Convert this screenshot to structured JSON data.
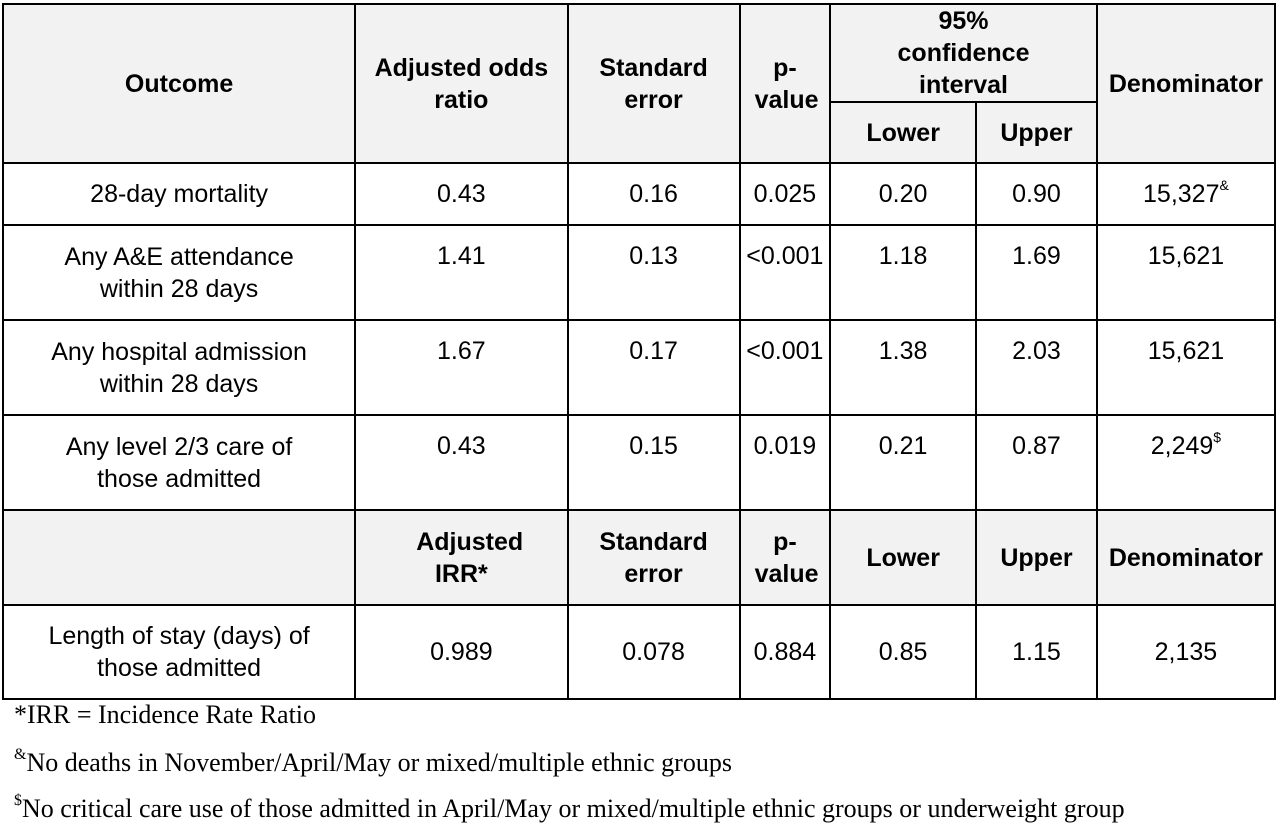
{
  "header": {
    "outcome": "Outcome",
    "aor": "Adjusted odds ratio",
    "se": "Standard error",
    "p": "p-value",
    "ci": "95% confidence interval",
    "lower": "Lower",
    "upper": "Upper",
    "denominator": "Denominator"
  },
  "rows": [
    {
      "outcome": "28-day mortality",
      "est": "0.43",
      "se": "0.16",
      "p": "0.025",
      "lower": "0.20",
      "upper": "0.90",
      "denom": "15,327",
      "mark": "&"
    },
    {
      "outcome": "Any A&E attendance within 28 days",
      "est": "1.41",
      "se": "0.13",
      "p": "<0.001",
      "lower": "1.18",
      "upper": "1.69",
      "denom": "15,621",
      "mark": ""
    },
    {
      "outcome": "Any hospital admission within 28 days",
      "est": "1.67",
      "se": "0.17",
      "p": "<0.001",
      "lower": "1.38",
      "upper": "2.03",
      "denom": "15,621",
      "mark": ""
    },
    {
      "outcome": "Any level 2/3 care of those admitted",
      "est": "0.43",
      "se": "0.15",
      "p": "0.019",
      "lower": "0.21",
      "upper": "0.87",
      "denom": "2,249",
      "mark": "$"
    }
  ],
  "header2": {
    "outcome": "",
    "irr": "Adjusted IRR*",
    "se": "Standard error",
    "p": "p-value",
    "lower": "Lower",
    "upper": "Upper",
    "denominator": "Denominator"
  },
  "los_row": {
    "outcome": "Length of stay (days) of those admitted",
    "est": "0.989",
    "se": "0.078",
    "p": "0.884",
    "lower": "0.85",
    "upper": "1.15",
    "denom": "2,135"
  },
  "footnotes": {
    "irr": "*IRR = Incidence Rate Ratio",
    "amp_mark": "&",
    "amp": "No deaths in November/April/May or mixed/multiple ethnic groups",
    "dollar_mark": "$",
    "dollar": "No critical care use of those admitted in April/May or mixed/multiple ethnic groups or underweight group"
  }
}
